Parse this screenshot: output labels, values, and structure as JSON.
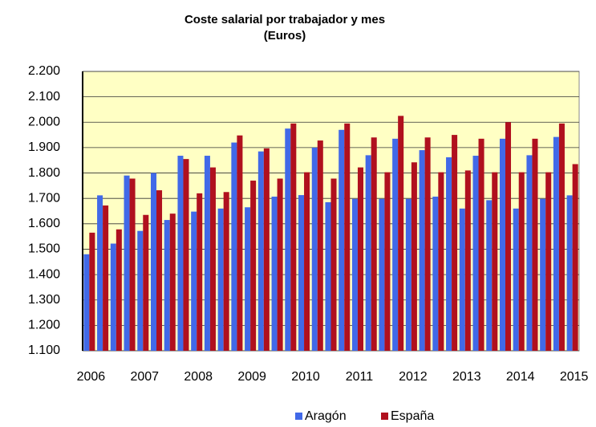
{
  "chart_data": {
    "type": "bar",
    "title": "Coste salarial por trabajador y mes",
    "subtitle": "(Euros)",
    "categories": [
      "2006",
      null,
      null,
      null,
      "2007",
      null,
      null,
      null,
      "2008",
      null,
      null,
      null,
      "2009",
      null,
      null,
      null,
      "2010",
      null,
      null,
      null,
      "2011",
      null,
      null,
      null,
      "2012",
      null,
      null,
      null,
      "2013",
      null,
      null,
      null,
      "2014",
      null,
      null,
      null,
      "2015"
    ],
    "series": [
      {
        "name": "Aragón",
        "color": "#4169e8",
        "values": [
          1480,
          1712,
          1522,
          1790,
          1572,
          1800,
          1615,
          1868,
          1648,
          1868,
          1660,
          1920,
          1665,
          1885,
          1707,
          1975,
          1713,
          1900,
          1685,
          1970,
          1698,
          1870,
          1698,
          1935,
          1698,
          1890,
          1707,
          1862,
          1660,
          1868,
          1693,
          1935,
          1660,
          1870,
          1698,
          1942,
          1712
        ]
      },
      {
        "name": "España",
        "color": "#b0101e",
        "values": [
          1565,
          1672,
          1578,
          1778,
          1635,
          1732,
          1640,
          1855,
          1720,
          1822,
          1725,
          1948,
          1770,
          1897,
          1778,
          1995,
          1803,
          1928,
          1778,
          1995,
          1822,
          1940,
          1803,
          2025,
          1842,
          1940,
          1803,
          1950,
          1810,
          1935,
          1803,
          2000,
          1803,
          1935,
          1803,
          1995,
          1835
        ]
      }
    ],
    "ylim": [
      1100,
      2200
    ],
    "yticks": [
      {
        "value": 1100,
        "label": "1.100"
      },
      {
        "value": 1200,
        "label": "1.200"
      },
      {
        "value": 1300,
        "label": "1.300"
      },
      {
        "value": 1400,
        "label": "1.400"
      },
      {
        "value": 1500,
        "label": "1.500"
      },
      {
        "value": 1600,
        "label": "1.600"
      },
      {
        "value": 1700,
        "label": "1.700"
      },
      {
        "value": 1800,
        "label": "1.800"
      },
      {
        "value": 1900,
        "label": "1.900"
      },
      {
        "value": 2000,
        "label": "2.000"
      },
      {
        "value": 2100,
        "label": "2.100"
      },
      {
        "value": 2200,
        "label": "2.200"
      }
    ],
    "grid": true,
    "legend": "bottom",
    "plot_background": "#ffffc4"
  }
}
